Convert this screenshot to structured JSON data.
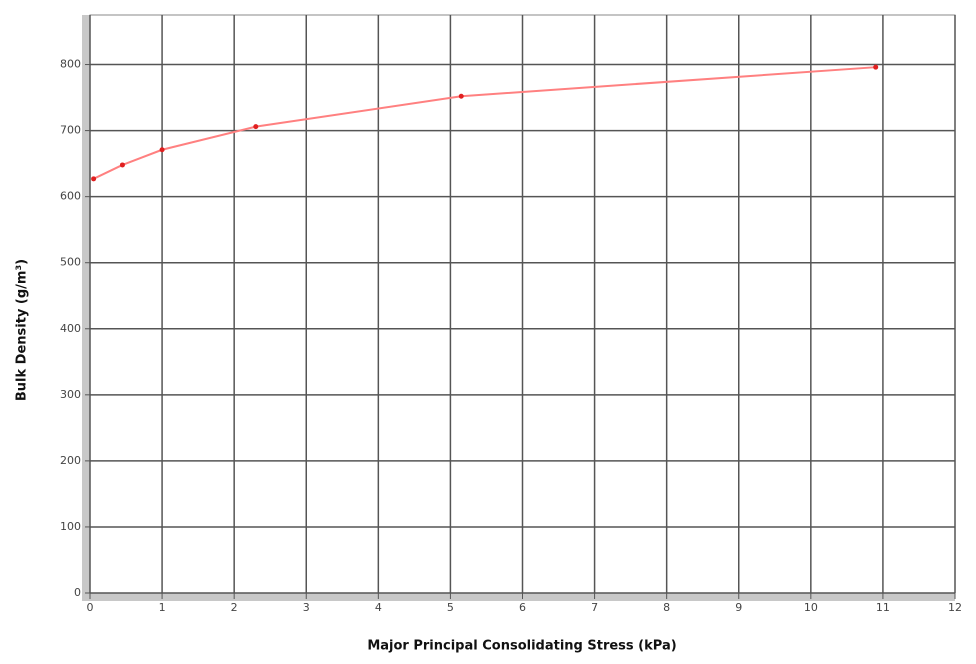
{
  "chart_data": {
    "type": "line",
    "x_label": "Major Principal Consolidating Stress (kPa)",
    "y_label": "Bulk Density (g/m³)",
    "series": [
      {
        "color": "#ff8080",
        "x": [
          0.05,
          0.45,
          1.0,
          2.3,
          5.15,
          10.9
        ],
        "values": [
          627,
          648,
          671,
          706,
          752,
          796
        ]
      }
    ],
    "xlim": [
      0,
      12
    ],
    "xticks": [
      0,
      1,
      2,
      3,
      4,
      5,
      6,
      7,
      8,
      9,
      10,
      11,
      12
    ],
    "ylim": [
      0,
      875
    ],
    "yticks": [
      0,
      100,
      200,
      300,
      400,
      500,
      600,
      700,
      800
    ],
    "grid": true
  }
}
